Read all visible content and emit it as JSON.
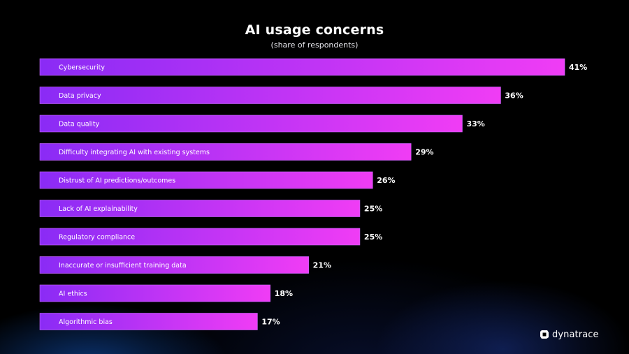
{
  "colors": {
    "bar_start": "#8A2BF5",
    "bar_end": "#F03CF5",
    "bar_border": "#C86BFF",
    "background": "#000000"
  },
  "brand": {
    "name": "dynatrace",
    "icon": "dynatrace-logo-icon"
  },
  "chart_data": {
    "type": "bar",
    "orientation": "horizontal",
    "title": "AI usage concerns",
    "subtitle": "(share of respondents)",
    "categories": [
      "Cybersecurity",
      "Data privacy",
      "Data quality",
      "Difficulty integrating AI with existing systems",
      "Distrust of AI predictions/outcomes",
      "Lack of AI explainability",
      "Regulatory compliance",
      "Inaccurate or insufficient training data",
      "AI ethics",
      "Algorithmic bias"
    ],
    "values": [
      41,
      36,
      33,
      29,
      26,
      25,
      25,
      21,
      18,
      17
    ],
    "value_labels": [
      "41%",
      "36%",
      "33%",
      "29%",
      "26%",
      "25%",
      "25%",
      "21%",
      "18%",
      "17%"
    ],
    "unit": "%",
    "xlim": [
      0,
      41
    ],
    "grid": false,
    "legend": "none"
  }
}
